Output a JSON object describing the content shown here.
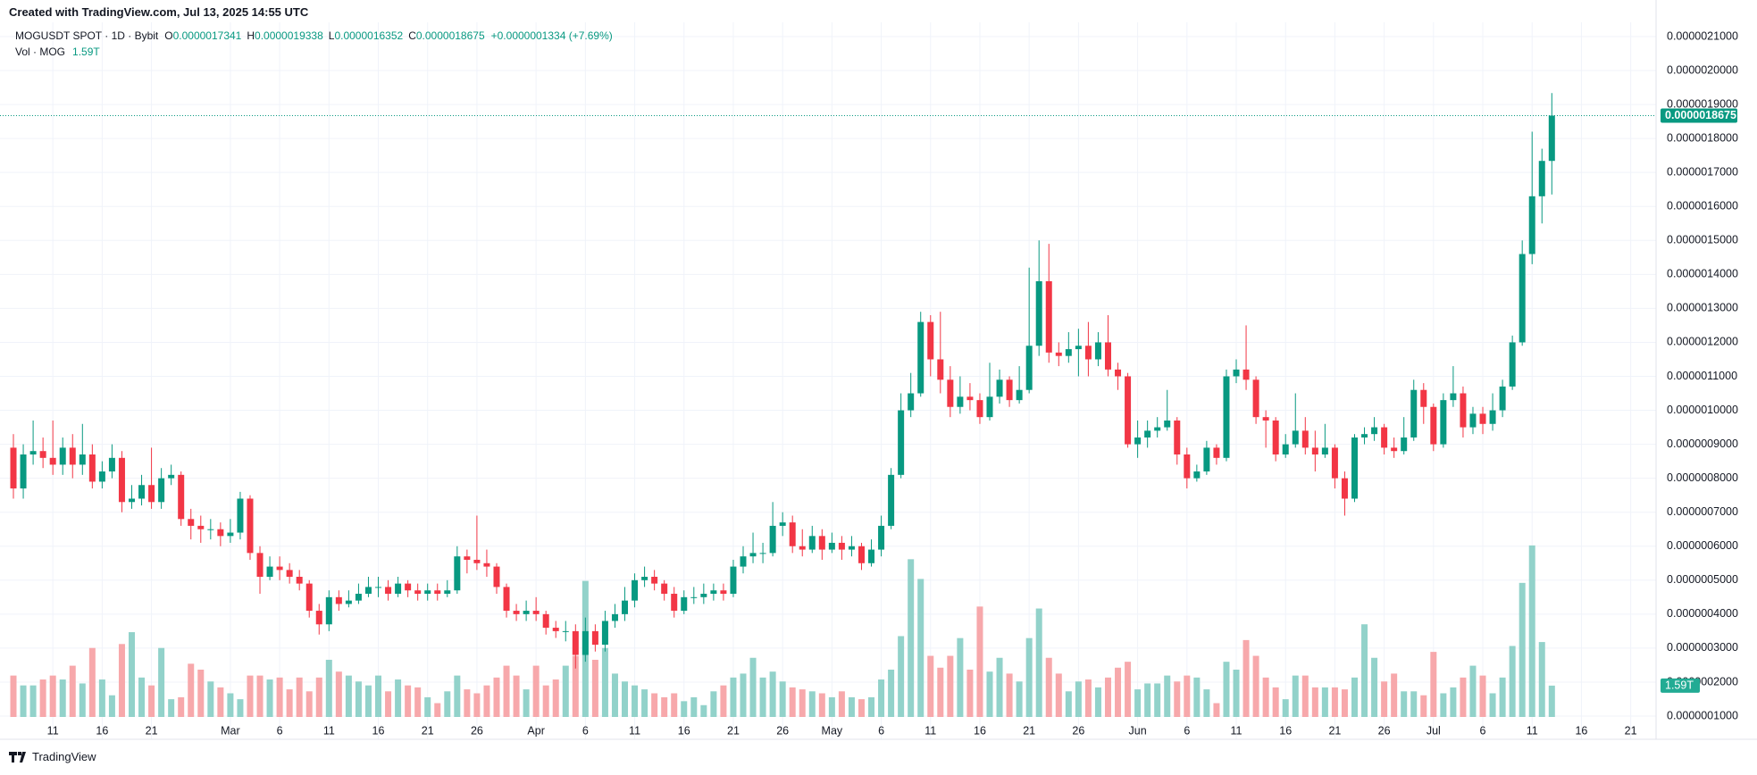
{
  "header": {
    "credit": "Created with TradingView.com, Jul 13, 2025 14:55 UTC"
  },
  "legend": {
    "symbol": "MOGUSDT SPOT · 1D · Bybit",
    "ohlc": [
      {
        "key": "O",
        "value": "0.0000017341"
      },
      {
        "key": "H",
        "value": "0.0000019338"
      },
      {
        "key": "L",
        "value": "0.0000016352"
      },
      {
        "key": "C",
        "value": "0.0000018675"
      }
    ],
    "change": "+0.0000001334 (+7.69%)",
    "vol_title": "Vol · MOG",
    "vol_value": "1.59T",
    "last_price": "0.0000018675"
  },
  "footer": {
    "brand": "TradingView"
  },
  "chart_data": {
    "type": "candlestick",
    "up_color": "#089981",
    "down_color": "#f23645",
    "vol_up_color": "#92d2ca",
    "vol_down_color": "#f7a8ab",
    "grid": true,
    "xlim": [
      -1.36,
      166.57
    ],
    "xticks": [
      {
        "value": 4,
        "label": "11"
      },
      {
        "value": 9,
        "label": "16"
      },
      {
        "value": 14,
        "label": "21"
      },
      {
        "value": 22,
        "label": "Mar"
      },
      {
        "value": 27,
        "label": "6"
      },
      {
        "value": 32,
        "label": "11"
      },
      {
        "value": 37,
        "label": "16"
      },
      {
        "value": 42,
        "label": "21"
      },
      {
        "value": 47,
        "label": "26"
      },
      {
        "value": 53,
        "label": "Apr"
      },
      {
        "value": 58,
        "label": "6"
      },
      {
        "value": 63,
        "label": "11"
      },
      {
        "value": 68,
        "label": "16"
      },
      {
        "value": 73,
        "label": "21"
      },
      {
        "value": 78,
        "label": "26"
      },
      {
        "value": 83,
        "label": "May"
      },
      {
        "value": 88,
        "label": "6"
      },
      {
        "value": 93,
        "label": "11"
      },
      {
        "value": 98,
        "label": "16"
      },
      {
        "value": 103,
        "label": "21"
      },
      {
        "value": 108,
        "label": "26"
      },
      {
        "value": 114,
        "label": "Jun"
      },
      {
        "value": 119,
        "label": "6"
      },
      {
        "value": 124,
        "label": "11"
      },
      {
        "value": 129,
        "label": "16"
      },
      {
        "value": 134,
        "label": "21"
      },
      {
        "value": 139,
        "label": "26"
      },
      {
        "value": 144,
        "label": "Jul"
      },
      {
        "value": 149,
        "label": "6"
      },
      {
        "value": 154,
        "label": "11"
      },
      {
        "value": 159,
        "label": "16"
      },
      {
        "value": 164,
        "label": "21"
      }
    ],
    "ylim": [
      3.17e-08,
      2.142e-06
    ],
    "yticks": [
      {
        "value": 1e-07,
        "label": "0.0000001000"
      },
      {
        "value": 2e-07,
        "label": "0.0000002000"
      },
      {
        "value": 3e-07,
        "label": "0.0000003000"
      },
      {
        "value": 4e-07,
        "label": "0.0000004000"
      },
      {
        "value": 5e-07,
        "label": "0.0000005000"
      },
      {
        "value": 6e-07,
        "label": "0.0000006000"
      },
      {
        "value": 7e-07,
        "label": "0.0000007000"
      },
      {
        "value": 8e-07,
        "label": "0.0000008000"
      },
      {
        "value": 9e-07,
        "label": "0.0000009000"
      },
      {
        "value": 1e-06,
        "label": "0.0000010000"
      },
      {
        "value": 1.1e-06,
        "label": "0.0000011000"
      },
      {
        "value": 1.2e-06,
        "label": "0.0000012000"
      },
      {
        "value": 1.3e-06,
        "label": "0.0000013000"
      },
      {
        "value": 1.4e-06,
        "label": "0.0000014000"
      },
      {
        "value": 1.5e-06,
        "label": "0.0000015000"
      },
      {
        "value": 1.6e-06,
        "label": "0.0000016000"
      },
      {
        "value": 1.7e-06,
        "label": "0.0000017000"
      },
      {
        "value": 1.8e-06,
        "label": "0.0000018000"
      },
      {
        "value": 1.9e-06,
        "label": "0.0000019000"
      },
      {
        "value": 2e-06,
        "label": "0.0000020000"
      },
      {
        "value": 2.1e-06,
        "label": "0.0000021000"
      }
    ],
    "vol_ylim": [
      0,
      36
    ],
    "open": [
      8.9e-07,
      7.7e-07,
      8.7e-07,
      8.8e-07,
      8.6e-07,
      8.4e-07,
      8.9e-07,
      8.4e-07,
      8.7e-07,
      7.9e-07,
      8.2e-07,
      8.6e-07,
      7.3e-07,
      7.4e-07,
      7.8e-07,
      7.3e-07,
      8e-07,
      8.1e-07,
      6.8e-07,
      6.6e-07,
      6.5e-07,
      6.5e-07,
      6.3e-07,
      6.4e-07,
      7.4e-07,
      5.8e-07,
      5.1e-07,
      5.4e-07,
      5.3e-07,
      5.1e-07,
      4.9e-07,
      4.1e-07,
      3.7e-07,
      4.5e-07,
      4.3e-07,
      4.4e-07,
      4.6e-07,
      4.8e-07,
      4.8e-07,
      4.6e-07,
      4.9e-07,
      4.7e-07,
      4.6e-07,
      4.7e-07,
      4.6e-07,
      4.7e-07,
      5.7e-07,
      5.6e-07,
      5.5e-07,
      5.4e-07,
      4.8e-07,
      4.1e-07,
      4e-07,
      4.1e-07,
      4e-07,
      3.6e-07,
      3.5e-07,
      3.5e-07,
      2.8e-07,
      3.5e-07,
      3.1e-07,
      3.8e-07,
      4e-07,
      4.4e-07,
      5e-07,
      5.1e-07,
      4.9e-07,
      4.6e-07,
      4.1e-07,
      4.5e-07,
      4.5e-07,
      4.6e-07,
      4.7e-07,
      4.6e-07,
      5.4e-07,
      5.7e-07,
      5.8e-07,
      5.8e-07,
      6.6e-07,
      6.7e-07,
      6e-07,
      5.9e-07,
      6.3e-07,
      5.9e-07,
      6.1e-07,
      5.9e-07,
      6e-07,
      5.5e-07,
      5.9e-07,
      6.6e-07,
      8.1e-07,
      1e-06,
      1.05e-06,
      1.26e-06,
      1.15e-06,
      1.09e-06,
      1.01e-06,
      1.04e-06,
      1.03e-06,
      9.8e-07,
      1.04e-06,
      1.09e-06,
      1.03e-06,
      1.06e-06,
      1.19e-06,
      1.38e-06,
      1.17e-06,
      1.16e-06,
      1.18e-06,
      1.19e-06,
      1.15e-06,
      1.2e-06,
      1.12e-06,
      1.1e-06,
      9e-07,
      9.2e-07,
      9.4e-07,
      9.5e-07,
      9.7e-07,
      8.7e-07,
      8e-07,
      8.2e-07,
      8.9e-07,
      8.6e-07,
      1.1e-06,
      1.12e-06,
      1.09e-06,
      9.8e-07,
      9.7e-07,
      8.7e-07,
      9e-07,
      9.4e-07,
      8.9e-07,
      8.7e-07,
      8.9e-07,
      8e-07,
      7.4e-07,
      9.2e-07,
      9.3e-07,
      9.5e-07,
      8.9e-07,
      8.8e-07,
      9.2e-07,
      1.06e-06,
      1.01e-06,
      9e-07,
      1.03e-06,
      1.05e-06,
      9.5e-07,
      9.9e-07,
      9.6e-07,
      1e-06,
      1.07e-06,
      1.2e-06,
      1.46e-06,
      1.63e-06,
      1.7341e-06
    ],
    "high": [
      9.3e-07,
      9e-07,
      9.7e-07,
      9.2e-07,
      9.7e-07,
      9.2e-07,
      9.3e-07,
      9.6e-07,
      9e-07,
      8.5e-07,
      9e-07,
      8.8e-07,
      7.8e-07,
      8.1e-07,
      8.9e-07,
      8.3e-07,
      8.4e-07,
      8.2e-07,
      7.1e-07,
      6.9e-07,
      6.8e-07,
      6.7e-07,
      6.8e-07,
      7.6e-07,
      7.5e-07,
      6e-07,
      5.7e-07,
      5.7e-07,
      5.5e-07,
      5.3e-07,
      5e-07,
      4.3e-07,
      4.7e-07,
      4.7e-07,
      4.7e-07,
      4.9e-07,
      5.1e-07,
      5.1e-07,
      5e-07,
      5.1e-07,
      5e-07,
      4.9e-07,
      4.9e-07,
      4.9e-07,
      5e-07,
      6e-07,
      5.9e-07,
      6.9e-07,
      5.9e-07,
      5.5e-07,
      4.9e-07,
      4.3e-07,
      4.4e-07,
      4.5e-07,
      4.1e-07,
      3.8e-07,
      3.8e-07,
      3.7e-07,
      3.9e-07,
      3.7e-07,
      4.1e-07,
      4.3e-07,
      4.8e-07,
      5.2e-07,
      5.4e-07,
      5.3e-07,
      5e-07,
      4.8e-07,
      4.7e-07,
      4.8e-07,
      4.9e-07,
      4.9e-07,
      4.9e-07,
      5.6e-07,
      6e-07,
      6.4e-07,
      6.1e-07,
      7.3e-07,
      7e-07,
      6.9e-07,
      6.5e-07,
      6.6e-07,
      6.5e-07,
      6.4e-07,
      6.3e-07,
      6.3e-07,
      6.1e-07,
      6.2e-07,
      6.9e-07,
      8.3e-07,
      1.05e-06,
      1.11e-06,
      1.29e-06,
      1.28e-06,
      1.29e-06,
      1.13e-06,
      1.1e-06,
      1.08e-06,
      1.05e-06,
      1.14e-06,
      1.12e-06,
      1.1e-06,
      1.13e-06,
      1.42e-06,
      1.5e-06,
      1.49e-06,
      1.2e-06,
      1.23e-06,
      1.24e-06,
      1.26e-06,
      1.23e-06,
      1.28e-06,
      1.14e-06,
      1.11e-06,
      9.7e-07,
      9.7e-07,
      9.8e-07,
      1.06e-06,
      9.8e-07,
      8.9e-07,
      8.4e-07,
      9.1e-07,
      9e-07,
      1.12e-06,
      1.15e-06,
      1.25e-06,
      1.1e-06,
      1e-06,
      9.8e-07,
      9.3e-07,
      1.05e-06,
      9.8e-07,
      9.4e-07,
      9.6e-07,
      9e-07,
      8.2e-07,
      9.3e-07,
      9.5e-07,
      9.8e-07,
      9.6e-07,
      9.2e-07,
      9.8e-07,
      1.09e-06,
      1.08e-06,
      1.02e-06,
      1.05e-06,
      1.13e-06,
      1.07e-06,
      1.01e-06,
      1.01e-06,
      1.05e-06,
      1.09e-06,
      1.22e-06,
      1.5e-06,
      1.82e-06,
      1.77e-06,
      1.9338e-06
    ],
    "low": [
      7.4e-07,
      7.4e-07,
      8.4e-07,
      8.3e-07,
      8.1e-07,
      8.1e-07,
      8e-07,
      8.1e-07,
      7.7e-07,
      7.7e-07,
      8e-07,
      7e-07,
      7.1e-07,
      7.2e-07,
      7.1e-07,
      7.1e-07,
      7.8e-07,
      6.6e-07,
      6.2e-07,
      6.1e-07,
      6.2e-07,
      6e-07,
      6.1e-07,
      6.2e-07,
      5.6e-07,
      4.6e-07,
      5e-07,
      5e-07,
      4.9e-07,
      4.7e-07,
      3.9e-07,
      3.4e-07,
      3.5e-07,
      4.1e-07,
      4.2e-07,
      4.3e-07,
      4.5e-07,
      4.5e-07,
      4.4e-07,
      4.5e-07,
      4.5e-07,
      4.4e-07,
      4.4e-07,
      4.4e-07,
      4.5e-07,
      4.6e-07,
      5.2e-07,
      5.3e-07,
      5.1e-07,
      4.6e-07,
      3.9e-07,
      3.8e-07,
      3.8e-07,
      3.8e-07,
      3.4e-07,
      3.3e-07,
      3.2e-07,
      2.4e-07,
      2.6e-07,
      2.9e-07,
      2.9e-07,
      3.6e-07,
      3.8e-07,
      4.2e-07,
      4.8e-07,
      4.7e-07,
      4.4e-07,
      3.9e-07,
      4e-07,
      4.3e-07,
      4.3e-07,
      4.4e-07,
      4.4e-07,
      4.5e-07,
      5.2e-07,
      5.5e-07,
      5.5e-07,
      5.7e-07,
      6.3e-07,
      5.8e-07,
      5.7e-07,
      5.8e-07,
      5.6e-07,
      5.8e-07,
      5.6e-07,
      5.7e-07,
      5.3e-07,
      5.4e-07,
      5.7e-07,
      6.5e-07,
      8e-07,
      9.8e-07,
      1.04e-06,
      1.1e-06,
      1.05e-06,
      9.8e-07,
      9.9e-07,
      1e-06,
      9.6e-07,
      9.7e-07,
      1.02e-06,
      1.01e-06,
      1.02e-06,
      1.05e-06,
      1.16e-06,
      1.14e-06,
      1.13e-06,
      1.14e-06,
      1.1e-06,
      1.1e-06,
      1.13e-06,
      1.1e-06,
      1.06e-06,
      8.9e-07,
      8.6e-07,
      8.9e-07,
      9.2e-07,
      9.4e-07,
      8.4e-07,
      7.7e-07,
      7.9e-07,
      8.1e-07,
      8.4e-07,
      8.5e-07,
      1.08e-06,
      1.06e-06,
      9.6e-07,
      8.9e-07,
      8.5e-07,
      8.6e-07,
      8.9e-07,
      8.7e-07,
      8.2e-07,
      8.6e-07,
      7.7e-07,
      6.9e-07,
      7.3e-07,
      9e-07,
      9.1e-07,
      8.7e-07,
      8.6e-07,
      8.7e-07,
      9.1e-07,
      9.6e-07,
      8.8e-07,
      8.9e-07,
      1.01e-06,
      9.2e-07,
      9.3e-07,
      9.3e-07,
      9.4e-07,
      9.8e-07,
      1.06e-06,
      1.19e-06,
      1.43e-06,
      1.55e-06,
      1.6352e-06
    ],
    "close": [
      7.7e-07,
      8.7e-07,
      8.8e-07,
      8.6e-07,
      8.4e-07,
      8.9e-07,
      8.4e-07,
      8.7e-07,
      7.9e-07,
      8.2e-07,
      8.6e-07,
      7.3e-07,
      7.4e-07,
      7.8e-07,
      7.3e-07,
      8e-07,
      8.1e-07,
      6.8e-07,
      6.6e-07,
      6.5e-07,
      6.5e-07,
      6.3e-07,
      6.4e-07,
      7.4e-07,
      5.8e-07,
      5.1e-07,
      5.4e-07,
      5.3e-07,
      5.1e-07,
      4.9e-07,
      4.1e-07,
      3.7e-07,
      4.5e-07,
      4.3e-07,
      4.4e-07,
      4.6e-07,
      4.8e-07,
      4.8e-07,
      4.6e-07,
      4.9e-07,
      4.7e-07,
      4.6e-07,
      4.7e-07,
      4.6e-07,
      4.7e-07,
      5.7e-07,
      5.6e-07,
      5.5e-07,
      5.4e-07,
      4.8e-07,
      4.1e-07,
      4e-07,
      4.1e-07,
      4e-07,
      3.6e-07,
      3.5e-07,
      3.5e-07,
      2.8e-07,
      3.5e-07,
      3.1e-07,
      3.8e-07,
      4e-07,
      4.4e-07,
      5e-07,
      5.1e-07,
      4.9e-07,
      4.6e-07,
      4.1e-07,
      4.5e-07,
      4.5e-07,
      4.6e-07,
      4.7e-07,
      4.6e-07,
      5.4e-07,
      5.7e-07,
      5.8e-07,
      5.8e-07,
      6.6e-07,
      6.7e-07,
      6e-07,
      5.9e-07,
      6.3e-07,
      5.9e-07,
      6.1e-07,
      5.9e-07,
      6e-07,
      5.5e-07,
      5.9e-07,
      6.6e-07,
      8.1e-07,
      1e-06,
      1.05e-06,
      1.26e-06,
      1.15e-06,
      1.09e-06,
      1.01e-06,
      1.04e-06,
      1.03e-06,
      9.8e-07,
      1.04e-06,
      1.09e-06,
      1.03e-06,
      1.06e-06,
      1.19e-06,
      1.38e-06,
      1.17e-06,
      1.16e-06,
      1.18e-06,
      1.19e-06,
      1.15e-06,
      1.2e-06,
      1.12e-06,
      1.1e-06,
      9e-07,
      9.2e-07,
      9.4e-07,
      9.5e-07,
      9.7e-07,
      8.7e-07,
      8e-07,
      8.2e-07,
      8.9e-07,
      8.6e-07,
      1.1e-06,
      1.12e-06,
      1.09e-06,
      9.8e-07,
      9.7e-07,
      8.7e-07,
      9e-07,
      9.4e-07,
      8.9e-07,
      8.7e-07,
      8.9e-07,
      8e-07,
      7.4e-07,
      9.2e-07,
      9.3e-07,
      9.5e-07,
      8.9e-07,
      8.8e-07,
      9.2e-07,
      1.06e-06,
      1.01e-06,
      9e-07,
      1.03e-06,
      1.05e-06,
      9.5e-07,
      9.9e-07,
      9.6e-07,
      1e-06,
      1.07e-06,
      1.2e-06,
      1.46e-06,
      1.63e-06,
      1.7341e-06,
      1.8675e-06
    ],
    "volume": [
      2.1,
      1.6,
      1.6,
      1.9,
      2.1,
      1.9,
      2.6,
      1.7,
      3.5,
      1.9,
      1.1,
      3.7,
      4.3,
      2.0,
      1.6,
      3.5,
      0.9,
      1.0,
      2.7,
      2.4,
      1.8,
      1.5,
      1.2,
      0.9,
      2.1,
      2.1,
      1.9,
      2.0,
      1.4,
      2.0,
      1.3,
      2.0,
      2.9,
      2.3,
      2.1,
      1.8,
      1.6,
      2.1,
      1.3,
      1.9,
      1.6,
      1.5,
      1.0,
      0.7,
      1.3,
      2.1,
      1.4,
      1.2,
      1.6,
      2.0,
      2.6,
      2.1,
      1.4,
      2.6,
      1.6,
      1.9,
      2.6,
      3.1,
      6.9,
      2.9,
      3.5,
      2.2,
      1.8,
      1.6,
      1.4,
      1.2,
      1.0,
      1.2,
      0.8,
      1.0,
      0.6,
      1.3,
      1.6,
      2.0,
      2.2,
      3.0,
      2.0,
      2.3,
      1.8,
      1.5,
      1.4,
      1.3,
      1.2,
      1.0,
      1.3,
      1.0,
      0.9,
      1.0,
      1.9,
      2.4,
      4.1,
      8.0,
      7.0,
      3.1,
      2.5,
      3.1,
      4.0,
      2.4,
      5.6,
      2.3,
      3.0,
      2.2,
      1.8,
      4.0,
      5.5,
      3.0,
      2.2,
      1.3,
      1.8,
      1.9,
      1.5,
      2.0,
      2.5,
      2.8,
      1.4,
      1.7,
      1.7,
      2.1,
      1.8,
      2.1,
      2.0,
      1.4,
      0.7,
      2.8,
      2.4,
      3.9,
      3.1,
      2.0,
      1.5,
      0.9,
      2.1,
      2.1,
      1.5,
      1.5,
      1.5,
      1.4,
      2.0,
      4.7,
      3.0,
      1.8,
      2.2,
      1.3,
      1.3,
      1.1,
      3.3,
      1.2,
      1.5,
      2.0,
      2.6,
      2.1,
      1.2,
      2.0,
      3.6,
      6.8,
      8.7,
      3.8,
      1.59
    ]
  }
}
